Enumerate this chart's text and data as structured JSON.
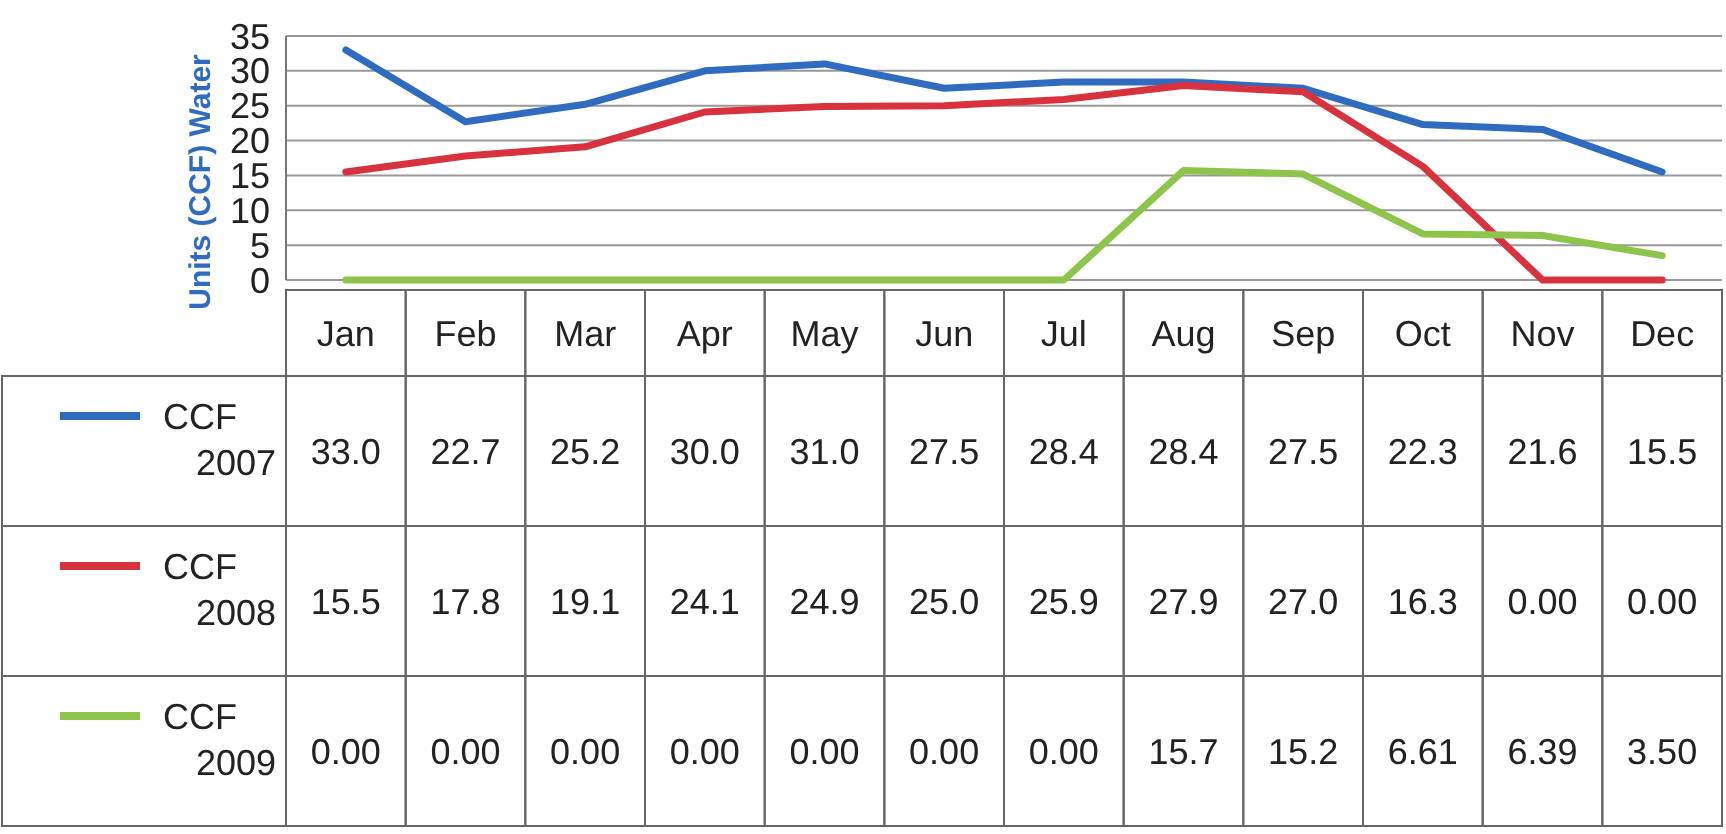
{
  "chart_data": {
    "type": "line",
    "ylabel": "Units (CCF) Water",
    "categories": [
      "Jan",
      "Feb",
      "Mar",
      "Apr",
      "May",
      "Jun",
      "Jul",
      "Aug",
      "Sep",
      "Oct",
      "Nov",
      "Dec"
    ],
    "ylim": [
      0,
      35
    ],
    "yticks": [
      0,
      5,
      10,
      15,
      20,
      25,
      30,
      35
    ],
    "grid": "y",
    "legend": "left",
    "marker": "none",
    "series": [
      {
        "name": "CCF 2007",
        "color": "#2f6cc0",
        "values": [
          33.0,
          22.7,
          25.2,
          30.0,
          31.0,
          27.5,
          28.4,
          28.4,
          27.5,
          22.3,
          21.6,
          15.5
        ],
        "value_labels": [
          "33.0",
          "22.7",
          "25.2",
          "30.0",
          "31.0",
          "27.5",
          "28.4",
          "28.4",
          "27.5",
          "22.3",
          "21.6",
          "15.5"
        ]
      },
      {
        "name": "CCF 2008",
        "color": "#d8323e",
        "values": [
          15.5,
          17.8,
          19.1,
          24.1,
          24.9,
          25.0,
          25.9,
          27.9,
          27.0,
          16.3,
          0,
          0
        ],
        "value_labels": [
          "15.5",
          "17.8",
          "19.1",
          "24.1",
          "24.9",
          "25.0",
          "25.9",
          "27.9",
          "27.0",
          "16.3",
          "0.00",
          "0.00"
        ]
      },
      {
        "name": "CCF 2009",
        "color": "#8dc44b",
        "values": [
          0,
          0,
          0,
          0,
          0,
          0,
          0,
          15.7,
          15.2,
          6.61,
          6.39,
          3.5
        ],
        "value_labels": [
          "0.00",
          "0.00",
          "0.00",
          "0.00",
          "0.00",
          "0.00",
          "0.00",
          "15.7",
          "15.2",
          "6.61",
          "6.39",
          "3.50"
        ]
      }
    ]
  }
}
